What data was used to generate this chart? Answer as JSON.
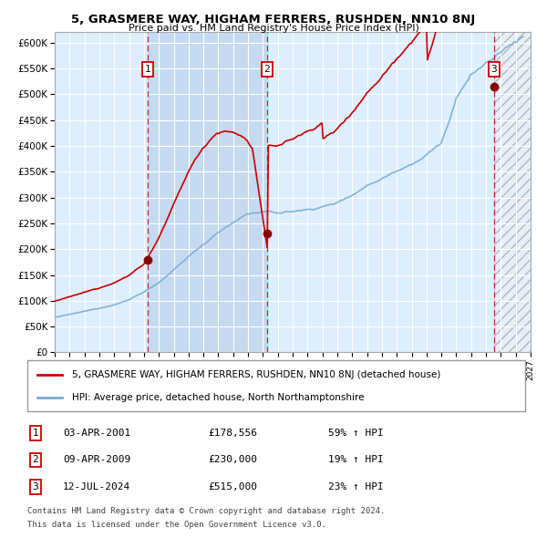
{
  "title": "5, GRASMERE WAY, HIGHAM FERRERS, RUSHDEN, NN10 8NJ",
  "subtitle": "Price paid vs. HM Land Registry's House Price Index (HPI)",
  "xlim": [
    1995.0,
    2027.0
  ],
  "ylim": [
    0,
    620000
  ],
  "yticks": [
    0,
    50000,
    100000,
    150000,
    200000,
    250000,
    300000,
    350000,
    400000,
    450000,
    500000,
    550000,
    600000
  ],
  "ytick_labels": [
    "£0",
    "£50K",
    "£100K",
    "£150K",
    "£200K",
    "£250K",
    "£300K",
    "£350K",
    "£400K",
    "£450K",
    "£500K",
    "£550K",
    "£600K"
  ],
  "sale_color": "#cc0000",
  "hpi_color": "#7aadd4",
  "background_color": "#ddeeff",
  "legend_sale": "5, GRASMERE WAY, HIGHAM FERRERS, RUSHDEN, NN10 8NJ (detached house)",
  "legend_hpi": "HPI: Average price, detached house, North Northamptonshire",
  "sale_dates": [
    2001.25,
    2009.27,
    2024.53
  ],
  "sale_prices": [
    178556,
    230000,
    515000
  ],
  "sale_labels": [
    "1",
    "2",
    "3"
  ],
  "sale_label_notes": [
    "03-APR-2001",
    "09-APR-2009",
    "12-JUL-2024"
  ],
  "sale_amounts": [
    "£178,556",
    "£230,000",
    "£515,000"
  ],
  "sale_hpi_pct": [
    "59% ↑ HPI",
    "19% ↑ HPI",
    "23% ↑ HPI"
  ],
  "shaded_region": [
    2001.25,
    2009.27
  ],
  "hatch_region": [
    2024.53,
    2027.0
  ],
  "footnote1": "Contains HM Land Registry data © Crown copyright and database right 2024.",
  "footnote2": "This data is licensed under the Open Government Licence v3.0."
}
